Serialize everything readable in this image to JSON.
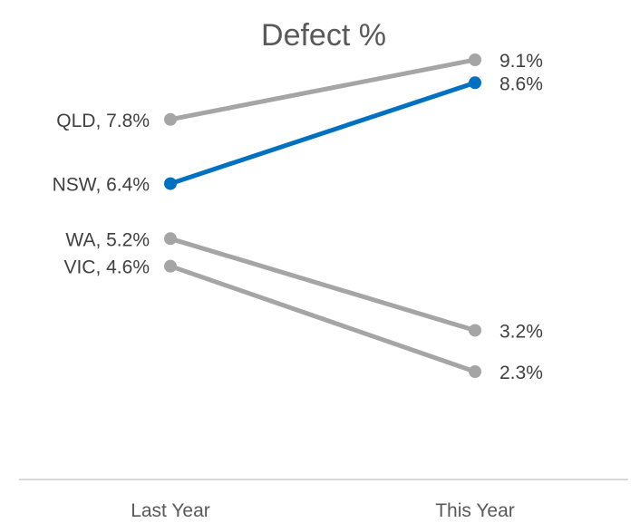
{
  "chart_data": {
    "type": "line",
    "title": "Defect %",
    "categories": [
      "Last Year",
      "This Year"
    ],
    "ylim": [
      0,
      10
    ],
    "grid": false,
    "legend": "none",
    "series": [
      {
        "name": "QLD",
        "values": [
          7.8,
          9.1
        ],
        "labels": [
          "QLD, 7.8%",
          "9.1%"
        ],
        "color": "#a5a5a5",
        "highlight": false
      },
      {
        "name": "NSW",
        "values": [
          6.4,
          8.6
        ],
        "labels": [
          "NSW, 6.4%",
          "8.6%"
        ],
        "color": "#0070c0",
        "highlight": true
      },
      {
        "name": "WA",
        "values": [
          5.2,
          3.2
        ],
        "labels": [
          "WA, 5.2%",
          "3.2%"
        ],
        "color": "#a5a5a5",
        "highlight": false
      },
      {
        "name": "VIC",
        "values": [
          4.6,
          2.3
        ],
        "labels": [
          "VIC, 4.6%",
          "2.3%"
        ],
        "color": "#a5a5a5",
        "highlight": false
      }
    ],
    "axis_color": "#d9d9d9"
  }
}
